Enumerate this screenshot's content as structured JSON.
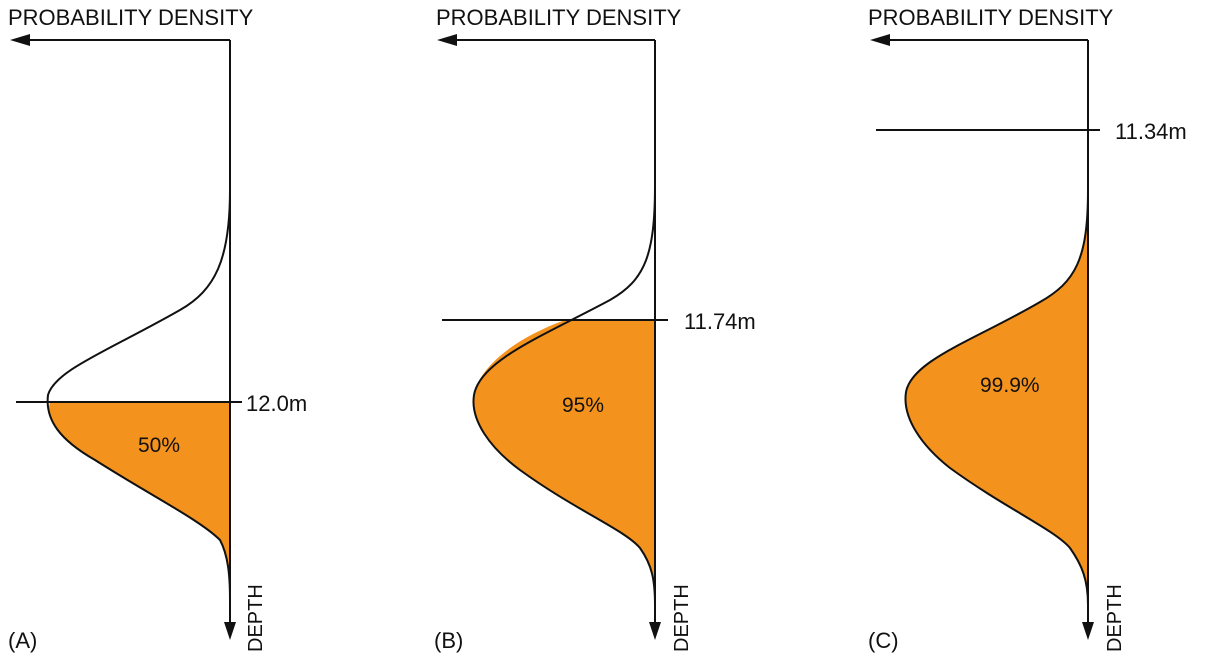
{
  "colors": {
    "fill": "#F4921E",
    "line": "#111111",
    "background": "#ffffff"
  },
  "panels": [
    {
      "letter": "(A)",
      "x_axis_title": "PROBABILITY DENSITY",
      "y_axis_title": "DEPTH",
      "threshold_label": "12.0m",
      "area_label": "50%",
      "shaded_fraction": 0.5
    },
    {
      "letter": "(B)",
      "x_axis_title": "PROBABILITY DENSITY",
      "y_axis_title": "DEPTH",
      "threshold_label": "11.74m",
      "area_label": "95%",
      "shaded_fraction": 0.95
    },
    {
      "letter": "(C)",
      "x_axis_title": "PROBABILITY DENSITY",
      "y_axis_title": "DEPTH",
      "threshold_label": "11.34m",
      "area_label": "99.9%",
      "shaded_fraction": 0.999
    }
  ]
}
